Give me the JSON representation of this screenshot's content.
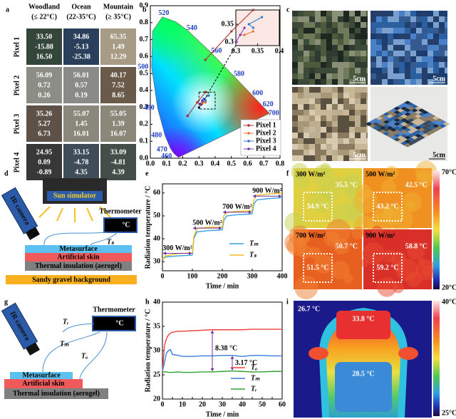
{
  "panel_labels": [
    "a",
    "b",
    "c",
    "d",
    "e",
    "f",
    "g",
    "h",
    "i"
  ],
  "panel_a": {
    "columns": [
      {
        "name": "Woodland",
        "range": "(≤ 22°C)"
      },
      {
        "name": "Ocean",
        "range": "(22-35°C)"
      },
      {
        "name": "Mountain",
        "range": "(≥ 35°C)"
      }
    ],
    "rows": [
      {
        "label": "Pixel 1",
        "cells": [
          {
            "color": "#34463a",
            "values": [
              "33.50",
              "-15.88",
              "16.50"
            ]
          },
          {
            "color": "#2a3f5c",
            "values": [
              "34.86",
              "-5.13",
              "-25.38"
            ]
          },
          {
            "color": "#a89b85",
            "values": [
              "65.35",
              "1.49",
              "12.29"
            ]
          }
        ]
      },
      {
        "label": "Pixel 2",
        "cells": [
          {
            "color": "#8c8d84",
            "values": [
              "56.09",
              "0.72",
              "0.26"
            ]
          },
          {
            "color": "#8a8b88",
            "values": [
              "56.01",
              "0.57",
              "0.19"
            ]
          },
          {
            "color": "#6a5a4a",
            "values": [
              "40.17",
              "7.52",
              "8.65"
            ]
          }
        ]
      },
      {
        "label": "Pixel 3",
        "cells": [
          {
            "color": "#5e5248",
            "values": [
              "35.26",
              "5.27",
              "6.73"
            ]
          },
          {
            "color": "#8a877d",
            "values": [
              "55.07",
              "1.45",
              "16.01"
            ]
          },
          {
            "color": "#8b887a",
            "values": [
              "55.05",
              "1.39",
              "16.07"
            ]
          }
        ]
      },
      {
        "label": "Pixel 4",
        "cells": [
          {
            "color": "#383838",
            "values": [
              "24.95",
              "0.09",
              "-0.89"
            ]
          },
          {
            "color": "#3e4d58",
            "values": [
              "33.15",
              "-4.78",
              "4.35"
            ]
          },
          {
            "color": "#434e48",
            "values": [
              "33.09",
              "-4.81",
              "4.39"
            ]
          }
        ]
      }
    ]
  },
  "chart_data": [
    {
      "type": "scatter",
      "xlim": [
        0,
        0.8
      ],
      "ylim": [
        0,
        0.9
      ],
      "xticks": [
        {
          "value": 0,
          "label": "0.0"
        },
        0.1,
        0.2,
        0.3,
        0.4,
        0.5,
        0.6,
        0.7,
        0.8
      ],
      "yticks": [
        {
          "value": 0,
          "label": "0.0"
        },
        0.1,
        0.2,
        0.3,
        0.4,
        0.5,
        0.6,
        0.7,
        0.8,
        0.9
      ],
      "wavelength_labels": [
        520,
        540,
        560,
        580,
        600,
        620,
        700,
        500,
        490,
        480,
        470,
        460
      ],
      "series": [
        {
          "name": "Pixel 1",
          "color": "#b02a2a",
          "x": [
            0.23,
            0.29,
            0.34
          ],
          "y": [
            0.25,
            0.33,
            0.39
          ]
        },
        {
          "name": "Pixel 2",
          "color": "#f07030",
          "x": [
            0.31,
            0.32,
            0.34
          ],
          "y": [
            0.32,
            0.32,
            0.33
          ]
        },
        {
          "name": "Pixel 3",
          "color": "#2f78c8",
          "x": [
            0.34,
            0.33,
            0.36
          ],
          "y": [
            0.34,
            0.35,
            0.37
          ]
        },
        {
          "name": "Pixel 4",
          "color": "#7a3ab0",
          "x": [
            0.3,
            0.31,
            0.32
          ],
          "y": [
            0.3,
            0.32,
            0.34
          ]
        }
      ],
      "inset": {
        "xlim": [
          0.3,
          0.4
        ],
        "ylim": [
          0.29,
          0.39
        ],
        "xticks": [
          0.3,
          0.35,
          0.4
        ],
        "yticks": [
          0.3,
          0.35
        ]
      }
    },
    {
      "type": "line",
      "xlabel": "Time / min",
      "ylabel": "Radiation temperature / °C",
      "xlim": [
        0,
        400
      ],
      "ylim": [
        26,
        64
      ],
      "xticks": [
        0,
        100,
        200,
        300,
        400
      ],
      "yticks": [
        30,
        40,
        50,
        60
      ],
      "x": [
        0,
        10,
        50,
        95,
        100,
        105,
        115,
        150,
        195,
        200,
        205,
        215,
        250,
        295,
        300,
        305,
        315,
        350,
        400
      ],
      "series": [
        {
          "name": "Tₘ",
          "color": "#3aa0e0",
          "values": [
            31,
            32,
            32.5,
            32.8,
            33,
            40,
            43,
            43.5,
            43.8,
            44,
            48,
            50,
            50.5,
            50.8,
            51,
            55,
            57,
            57.5,
            58
          ]
        },
        {
          "name": "Tₛ",
          "color": "#f0c020",
          "values": [
            31,
            32.5,
            33.5,
            33.8,
            34,
            41,
            44.5,
            45,
            45,
            45.2,
            50,
            51.5,
            52,
            52.2,
            52.5,
            57,
            59,
            59.5,
            60
          ]
        }
      ],
      "annotations": [
        "300 W/m²",
        "500 W/m²",
        "700 W/m²",
        "900 W/m²"
      ],
      "annotation_color": "#7030a0"
    },
    {
      "type": "line",
      "xlabel": "Time / min",
      "ylabel": "Radiation temperature / °C",
      "xlim": [
        0,
        60
      ],
      "ylim": [
        20,
        40
      ],
      "xticks": [
        0,
        5,
        10,
        15,
        20,
        25,
        30,
        35,
        40,
        45,
        50,
        55,
        60
      ],
      "yticks": [
        20,
        25,
        30,
        35,
        40
      ],
      "x": [
        0,
        1,
        2,
        3,
        4,
        5,
        8,
        10,
        15,
        20,
        25,
        30,
        35,
        40,
        45,
        50,
        55,
        60
      ],
      "series": [
        {
          "name": "Tₐ",
          "color": "#f04040",
          "values": [
            25.6,
            31,
            32.5,
            33.2,
            33.6,
            33.8,
            34,
            34,
            34.1,
            34.2,
            34.3,
            34.3,
            34.3,
            34.3,
            34.4,
            34.4,
            34.4,
            34.4
          ]
        },
        {
          "name": "Tₘ",
          "color": "#3a7ee0",
          "values": [
            25.8,
            27.5,
            29.5,
            30,
            30.2,
            29.2,
            29,
            28.8,
            28.8,
            28.9,
            28.9,
            29,
            29,
            28.8,
            29,
            29,
            28.9,
            28.9
          ]
        },
        {
          "name": "Tᵣ",
          "color": "#30a030",
          "values": [
            25.7,
            25.6,
            25.6,
            25.5,
            25.5,
            25.5,
            25.6,
            25.5,
            25.5,
            25.6,
            25.6,
            25.7,
            25.8,
            25.7,
            25.6,
            25.6,
            25.7,
            25.7
          ]
        }
      ],
      "annotations": [
        "8.38 °C",
        "3.17 °C"
      ],
      "annotation_color": "#7030a0"
    }
  ],
  "panel_c": {
    "scale_labels": [
      "5cm",
      "5cm",
      "5cm",
      "5cm"
    ]
  },
  "panel_d": {
    "source": "Sun simulator",
    "thermometer": "Thermometer",
    "display": "°C",
    "camera": "IR camera",
    "probes": [
      "Tₘ",
      "Tₛ"
    ],
    "layers": [
      "Metasurface",
      "Artificial skin",
      "Thermal insulation (aerogel)"
    ],
    "background": "Sandy gravel background"
  },
  "panel_f": {
    "images": [
      {
        "irradiance": "300 W/m²",
        "background": "35.5 °C",
        "sample": "34.9 °C"
      },
      {
        "irradiance": "500 W/m²",
        "background": "42.5 °C",
        "sample": "43.2 °C"
      },
      {
        "irradiance": "700 W/m²",
        "background": "50.7 °C",
        "sample": "51.5 °C"
      },
      {
        "irradiance": "900 W/m²",
        "background": "58.8 °C",
        "sample": "59.2 °C"
      }
    ],
    "colorbar": {
      "max": "70°C",
      "min": "20°C"
    }
  },
  "panel_g": {
    "thermometer": "Thermometer",
    "display": "°C",
    "camera": "IR camera",
    "probes": [
      "Tᵣ",
      "Tₘ",
      "Tₐ"
    ],
    "layers": [
      "Metasurface",
      "Artificial skin",
      "Thermal insulation (aerogel)"
    ]
  },
  "panel_i": {
    "labels": [
      "26.7 °C",
      "33.8 °C",
      "28.5 °C"
    ],
    "colorbar": {
      "max": "40°C",
      "min": "25°C"
    }
  }
}
